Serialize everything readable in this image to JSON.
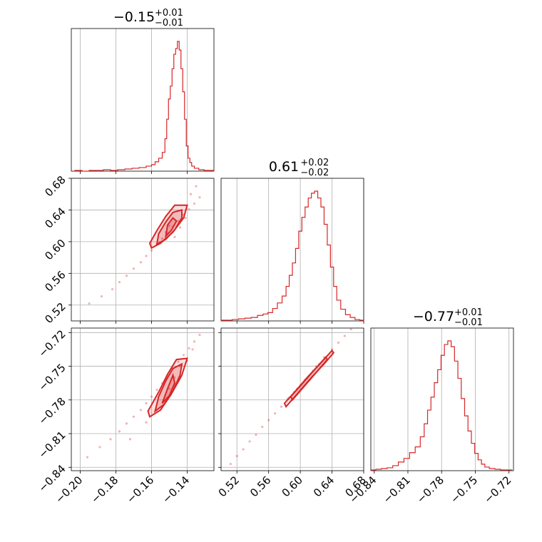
{
  "chart_data": {
    "type": "corner",
    "color": "#d62728",
    "parameters": [
      {
        "range": [
          -0.205,
          -0.125
        ],
        "ticks": [
          -0.2,
          -0.18,
          -0.16,
          -0.14
        ],
        "tick_labels": [
          "−0.20",
          "−0.18",
          "−0.16",
          "−0.14"
        ]
      },
      {
        "range": [
          0.5,
          0.68
        ],
        "ticks": [
          0.52,
          0.56,
          0.6,
          0.64,
          0.68
        ],
        "tick_labels": [
          "0.52",
          "0.56",
          "0.60",
          "0.64",
          "0.68"
        ]
      },
      {
        "range": [
          -0.843,
          -0.716
        ],
        "ticks": [
          -0.84,
          -0.81,
          -0.78,
          -0.75,
          -0.72
        ],
        "tick_labels": [
          "−0.84",
          "−0.81",
          "−0.78",
          "−0.75",
          "−0.72"
        ]
      }
    ],
    "titles": [
      {
        "value": "−0.15",
        "plus": "+0.01",
        "minus": "−0.01"
      },
      {
        "value": "0.61",
        "plus": "+0.02",
        "minus": "−0.02"
      },
      {
        "value": "−0.77",
        "plus": "+0.01",
        "minus": "−0.01"
      }
    ],
    "histograms": [
      {
        "bin_centers": [
          -0.201,
          -0.197,
          -0.193,
          -0.189,
          -0.185,
          -0.181,
          -0.177,
          -0.173,
          -0.169,
          -0.165,
          -0.161,
          -0.159,
          -0.157,
          -0.155,
          -0.153,
          -0.152,
          -0.151,
          -0.15,
          -0.149,
          -0.148,
          -0.147,
          -0.146,
          -0.145,
          -0.144,
          -0.143,
          -0.142,
          -0.141,
          -0.14,
          -0.139,
          -0.138,
          -0.137,
          -0.135,
          -0.132,
          -0.129,
          -0.126
        ],
        "counts": [
          1,
          0,
          1,
          1,
          2,
          1,
          2,
          3,
          4,
          5,
          7,
          9,
          13,
          18,
          26,
          45,
          72,
          100,
          118,
          142,
          162,
          170,
          180,
          168,
          142,
          110,
          72,
          35,
          18,
          12,
          7,
          4,
          2,
          1,
          1
        ]
      },
      {
        "bin_centers": [
          0.502,
          0.51,
          0.518,
          0.526,
          0.534,
          0.542,
          0.55,
          0.556,
          0.562,
          0.568,
          0.574,
          0.58,
          0.584,
          0.588,
          0.592,
          0.596,
          0.6,
          0.604,
          0.608,
          0.612,
          0.616,
          0.62,
          0.624,
          0.628,
          0.632,
          0.636,
          0.64,
          0.644,
          0.648,
          0.654,
          0.66,
          0.666,
          0.672,
          0.678
        ],
        "counts": [
          1,
          1,
          2,
          3,
          4,
          5,
          8,
          10,
          12,
          18,
          26,
          36,
          50,
          66,
          84,
          105,
          130,
          150,
          165,
          178,
          185,
          188,
          178,
          165,
          140,
          110,
          78,
          50,
          30,
          17,
          9,
          5,
          2,
          1
        ]
      },
      {
        "bin_centers": [
          -0.841,
          -0.836,
          -0.831,
          -0.826,
          -0.821,
          -0.816,
          -0.811,
          -0.806,
          -0.801,
          -0.797,
          -0.794,
          -0.791,
          -0.788,
          -0.785,
          -0.782,
          -0.779,
          -0.776,
          -0.773,
          -0.77,
          -0.767,
          -0.764,
          -0.761,
          -0.758,
          -0.755,
          -0.752,
          -0.749,
          -0.746,
          -0.743,
          -0.74,
          -0.735,
          -0.73,
          -0.725,
          -0.72
        ],
        "counts": [
          1,
          2,
          3,
          4,
          7,
          12,
          17,
          25,
          33,
          47,
          65,
          84,
          102,
          122,
          140,
          160,
          175,
          180,
          172,
          152,
          128,
          100,
          76,
          55,
          38,
          24,
          15,
          9,
          5,
          3,
          2,
          1,
          1
        ]
      }
    ],
    "scatter_pairs": [
      {
        "x_param": 0,
        "y_param": 1,
        "points": [
          [
            -0.195,
            0.522
          ],
          [
            -0.188,
            0.531
          ],
          [
            -0.182,
            0.54
          ],
          [
            -0.178,
            0.549
          ],
          [
            -0.174,
            0.557
          ],
          [
            -0.17,
            0.566
          ],
          [
            -0.166,
            0.574
          ],
          [
            -0.163,
            0.582
          ],
          [
            -0.16,
            0.589
          ],
          [
            -0.157,
            0.597
          ],
          [
            -0.154,
            0.604
          ],
          [
            -0.151,
            0.611
          ],
          [
            -0.148,
            0.619
          ],
          [
            -0.145,
            0.626
          ],
          [
            -0.142,
            0.634
          ],
          [
            -0.139,
            0.641
          ],
          [
            -0.136,
            0.648
          ],
          [
            -0.133,
            0.656
          ],
          [
            -0.152,
            0.612
          ],
          [
            -0.15,
            0.62
          ],
          [
            -0.147,
            0.606
          ],
          [
            -0.144,
            0.618
          ],
          [
            -0.141,
            0.63
          ],
          [
            -0.138,
            0.66
          ],
          [
            -0.135,
            0.67
          ]
        ],
        "contours": [
          [
            [
              -0.16,
              0.592
            ],
            [
              -0.155,
              0.598
            ],
            [
              -0.148,
              0.612
            ],
            [
              -0.142,
              0.63
            ],
            [
              -0.14,
              0.646
            ],
            [
              -0.147,
              0.646
            ],
            [
              -0.152,
              0.632
            ],
            [
              -0.157,
              0.614
            ],
            [
              -0.161,
              0.598
            ]
          ],
          [
            [
              -0.157,
              0.597
            ],
            [
              -0.152,
              0.603
            ],
            [
              -0.147,
              0.615
            ],
            [
              -0.143,
              0.63
            ],
            [
              -0.143,
              0.64
            ],
            [
              -0.148,
              0.637
            ],
            [
              -0.152,
              0.625
            ],
            [
              -0.156,
              0.61
            ]
          ],
          [
            [
              -0.152,
              0.607
            ],
            [
              -0.149,
              0.614
            ],
            [
              -0.146,
              0.626
            ],
            [
              -0.148,
              0.63
            ],
            [
              -0.151,
              0.621
            ]
          ]
        ]
      },
      {
        "x_param": 0,
        "y_param": 2,
        "points": [
          [
            -0.196,
            -0.831
          ],
          [
            -0.189,
            -0.822
          ],
          [
            -0.183,
            -0.815
          ],
          [
            -0.178,
            -0.808
          ],
          [
            -0.174,
            -0.801
          ],
          [
            -0.17,
            -0.795
          ],
          [
            -0.166,
            -0.789
          ],
          [
            -0.163,
            -0.783
          ],
          [
            -0.16,
            -0.777
          ],
          [
            -0.157,
            -0.771
          ],
          [
            -0.154,
            -0.765
          ],
          [
            -0.151,
            -0.759
          ],
          [
            -0.148,
            -0.752
          ],
          [
            -0.145,
            -0.746
          ],
          [
            -0.142,
            -0.74
          ],
          [
            -0.139,
            -0.734
          ],
          [
            -0.136,
            -0.728
          ],
          [
            -0.133,
            -0.722
          ],
          [
            -0.15,
            -0.77
          ],
          [
            -0.147,
            -0.76
          ],
          [
            -0.144,
            -0.75
          ],
          [
            -0.14,
            -0.745
          ],
          [
            -0.172,
            -0.815
          ],
          [
            -0.163,
            -0.8
          ],
          [
            -0.137,
            -0.735
          ]
        ],
        "contours": [
          [
            [
              -0.161,
              -0.795
            ],
            [
              -0.155,
              -0.789
            ],
            [
              -0.149,
              -0.775
            ],
            [
              -0.143,
              -0.758
            ],
            [
              -0.14,
              -0.743
            ],
            [
              -0.146,
              -0.744
            ],
            [
              -0.151,
              -0.757
            ],
            [
              -0.156,
              -0.773
            ],
            [
              -0.162,
              -0.79
            ]
          ],
          [
            [
              -0.158,
              -0.79
            ],
            [
              -0.153,
              -0.784
            ],
            [
              -0.148,
              -0.772
            ],
            [
              -0.144,
              -0.758
            ],
            [
              -0.143,
              -0.748
            ],
            [
              -0.148,
              -0.752
            ],
            [
              -0.152,
              -0.763
            ],
            [
              -0.156,
              -0.777
            ]
          ],
          [
            [
              -0.154,
              -0.783
            ],
            [
              -0.15,
              -0.776
            ],
            [
              -0.147,
              -0.765
            ],
            [
              -0.148,
              -0.758
            ],
            [
              -0.151,
              -0.77
            ]
          ]
        ]
      },
      {
        "x_param": 1,
        "y_param": 2,
        "points": [
          [
            0.512,
            -0.837
          ],
          [
            0.52,
            -0.83
          ],
          [
            0.528,
            -0.824
          ],
          [
            0.536,
            -0.817
          ],
          [
            0.544,
            -0.811
          ],
          [
            0.552,
            -0.804
          ],
          [
            0.56,
            -0.798
          ],
          [
            0.568,
            -0.792
          ],
          [
            0.576,
            -0.786
          ],
          [
            0.584,
            -0.779
          ],
          [
            0.592,
            -0.773
          ],
          [
            0.6,
            -0.767
          ],
          [
            0.608,
            -0.761
          ],
          [
            0.616,
            -0.754
          ],
          [
            0.624,
            -0.748
          ],
          [
            0.632,
            -0.742
          ],
          [
            0.64,
            -0.735
          ],
          [
            0.648,
            -0.729
          ],
          [
            0.656,
            -0.723
          ],
          [
            0.664,
            -0.717
          ],
          [
            0.586,
            -0.778
          ],
          [
            0.606,
            -0.762
          ],
          [
            0.62,
            -0.75
          ],
          [
            0.596,
            -0.77
          ],
          [
            0.63,
            -0.742
          ]
        ],
        "contours": [
          [
            [
              0.582,
              -0.786
            ],
            [
              0.598,
              -0.773
            ],
            [
              0.614,
              -0.76
            ],
            [
              0.63,
              -0.748
            ],
            [
              0.642,
              -0.738
            ],
            [
              0.64,
              -0.736
            ],
            [
              0.626,
              -0.747
            ],
            [
              0.61,
              -0.759
            ],
            [
              0.594,
              -0.772
            ],
            [
              0.58,
              -0.783
            ]
          ],
          [
            [
              0.59,
              -0.78
            ],
            [
              0.606,
              -0.767
            ],
            [
              0.622,
              -0.754
            ],
            [
              0.634,
              -0.744
            ],
            [
              0.632,
              -0.742
            ],
            [
              0.618,
              -0.753
            ],
            [
              0.602,
              -0.766
            ],
            [
              0.588,
              -0.777
            ]
          ]
        ]
      }
    ]
  }
}
